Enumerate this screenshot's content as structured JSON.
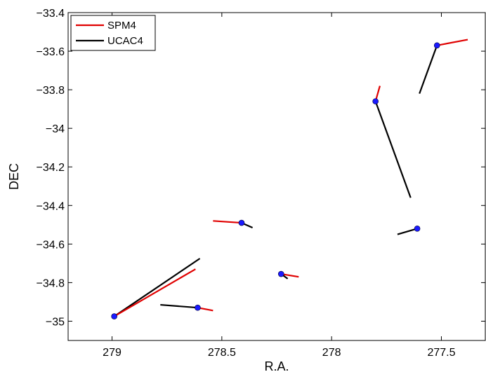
{
  "chart_data": {
    "type": "line",
    "title": "",
    "xlabel": "R.A.",
    "ylabel": "DEC",
    "x_reversed": true,
    "xlim": [
      279.2,
      277.3
    ],
    "ylim": [
      -35.1,
      -33.4
    ],
    "x_ticks": [
      279,
      278.5,
      278,
      277.5
    ],
    "y_ticks": [
      -35,
      -34.8,
      -34.6,
      -34.4,
      -34.2,
      -34,
      -33.8,
      -33.6,
      -33.4
    ],
    "grid": false,
    "legend_position": "top-left",
    "colors": {
      "SPM4": "#e00000",
      "UCAC4": "#000000",
      "star": "#1a1aff"
    },
    "series": [
      {
        "name": "SPM4",
        "color": "#e00000"
      },
      {
        "name": "UCAC4",
        "color": "#000000"
      }
    ],
    "stars": [
      {
        "x": 277.52,
        "y": -33.57,
        "spm4_end": [
          277.38,
          -33.54
        ],
        "ucac4_end": [
          277.6,
          -33.82
        ]
      },
      {
        "x": 277.8,
        "y": -33.86,
        "spm4_end": [
          277.78,
          -33.78
        ],
        "ucac4_end": [
          277.64,
          -34.36
        ]
      },
      {
        "x": 277.61,
        "y": -34.52,
        "spm4_end": null,
        "ucac4_end": [
          277.7,
          -34.55
        ]
      },
      {
        "x": 278.41,
        "y": -34.49,
        "spm4_end": [
          278.54,
          -34.48
        ],
        "ucac4_end": [
          278.36,
          -34.515
        ]
      },
      {
        "x": 278.23,
        "y": -34.755,
        "spm4_end": [
          278.15,
          -34.77
        ],
        "ucac4_end": [
          278.2,
          -34.78
        ]
      },
      {
        "x": 278.99,
        "y": -34.975,
        "spm4_end": [
          278.62,
          -34.73
        ],
        "ucac4_end": [
          278.6,
          -34.675
        ]
      },
      {
        "x": 278.61,
        "y": -34.93,
        "spm4_end": [
          278.54,
          -34.945
        ],
        "ucac4_end": [
          278.78,
          -34.915
        ]
      }
    ]
  }
}
